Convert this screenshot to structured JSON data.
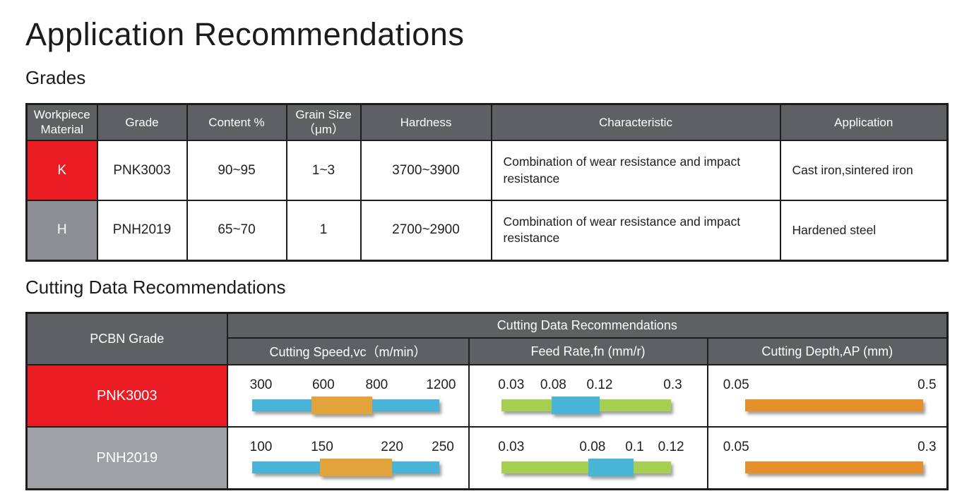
{
  "page": {
    "title": "Application Recommendations"
  },
  "sections": {
    "grades_heading": "Grades",
    "cutting_heading": "Cutting Data Recommendations"
  },
  "colors": {
    "table_header_bg": "#5e6063",
    "brand_red": "#ea1b23",
    "letter_gray": "#8d8f92",
    "row_gray": "#9fa1a5",
    "range_blue": "#47b4d8",
    "range_green": "#a5cf4e",
    "range_orange": "#e3a33b",
    "depth_orange": "#e78f2b",
    "border": "#1d1d1d"
  },
  "grades_table": {
    "headers": [
      "Workpiece\nMaterial",
      "Grade",
      "Content %",
      "Grain Size\n（μm）",
      "Hardness",
      "Characteristic",
      "Application"
    ],
    "rows": [
      {
        "letter": "K",
        "grade": "PNK3003",
        "content": "90~95",
        "grain": "1~3",
        "hardness": "3700~3900",
        "characteristic": "Combination of wear resistance and impact resistance",
        "application": "Cast iron,sintered iron"
      },
      {
        "letter": "H",
        "grade": "PNH2019",
        "content": "65~70",
        "grain": "1",
        "hardness": "2700~2900",
        "characteristic": "Combination of wear resistance and impact resistance",
        "application": "Hardened steel"
      }
    ]
  },
  "cutting_table": {
    "span_header": "Cutting Data Recommendations",
    "col_grade": "PCBN Grade",
    "col_speed": "Cutting Speed,vc（m/min）",
    "col_feed": "Feed Rate,fn (mm/r)",
    "col_depth": "Cutting Depth,AP (mm)",
    "rows": [
      {
        "grade": "PNK3003",
        "bars": [
          {
            "name": "cutting-speed",
            "margin_left": 10,
            "margin_right": 12,
            "labels": [
              {
                "text": "300",
                "pos": 4.9
              },
              {
                "text": "600",
                "pos": 38.2
              },
              {
                "text": "800",
                "pos": 66.7
              },
              {
                "text": "1200",
                "pos": 101
              }
            ],
            "segments": [
              {
                "color": "#47b4d8",
                "pct": 31.8,
                "tall": false
              },
              {
                "color": "#e3a33b",
                "pct": 32.6,
                "tall": true
              },
              {
                "color": "#47b4d8",
                "pct": 35.6,
                "tall": false
              }
            ]
          },
          {
            "name": "feed-rate",
            "margin_left": 13.5,
            "margin_right": 15,
            "labels": [
              {
                "text": "0.03",
                "pos": 5.8
              },
              {
                "text": "0.08",
                "pos": 30.6
              },
              {
                "text": "0.12",
                "pos": 57.9
              },
              {
                "text": "0.3",
                "pos": 101
              }
            ],
            "segments": [
              {
                "color": "#a5cf4e",
                "pct": 29.8,
                "tall": false
              },
              {
                "color": "#47b4d8",
                "pct": 28.1,
                "tall": true
              },
              {
                "color": "#a5cf4e",
                "pct": 42.1,
                "tall": false
              }
            ]
          },
          {
            "name": "cutting-depth",
            "margin_left": 15.5,
            "margin_right": 9.7,
            "labels": [
              {
                "text": "0.05",
                "pos": -5
              },
              {
                "text": "0.5",
                "pos": 102
              }
            ],
            "segments": [
              {
                "color": "#e78f2b",
                "pct": 100,
                "tall": false
              }
            ]
          }
        ]
      },
      {
        "grade": "PNH2019",
        "bars": [
          {
            "name": "cutting-speed",
            "margin_left": 10,
            "margin_right": 12,
            "labels": [
              {
                "text": "100",
                "pos": 4.9
              },
              {
                "text": "150",
                "pos": 37.5
              },
              {
                "text": "220",
                "pos": 74.9
              },
              {
                "text": "250",
                "pos": 102
              }
            ],
            "segments": [
              {
                "color": "#47b4d8",
                "pct": 36.3,
                "tall": false
              },
              {
                "color": "#e3a33b",
                "pct": 38.6,
                "tall": true
              },
              {
                "color": "#47b4d8",
                "pct": 25.1,
                "tall": false
              }
            ]
          },
          {
            "name": "feed-rate",
            "margin_left": 13.5,
            "margin_right": 15,
            "labels": [
              {
                "text": "0.03",
                "pos": 5.8
              },
              {
                "text": "0.08",
                "pos": 53.7
              },
              {
                "text": "0.1",
                "pos": 78.5
              },
              {
                "text": "0.12",
                "pos": 100
              }
            ],
            "segments": [
              {
                "color": "#a5cf4e",
                "pct": 51.2,
                "tall": false
              },
              {
                "color": "#47b4d8",
                "pct": 26.9,
                "tall": true
              },
              {
                "color": "#a5cf4e",
                "pct": 21.9,
                "tall": false
              }
            ]
          },
          {
            "name": "cutting-depth",
            "margin_left": 15.5,
            "margin_right": 9.7,
            "labels": [
              {
                "text": "0.05",
                "pos": -5
              },
              {
                "text": "0.3",
                "pos": 102
              }
            ],
            "segments": [
              {
                "color": "#e78f2b",
                "pct": 100,
                "tall": false
              }
            ]
          }
        ]
      }
    ]
  },
  "chart_data": [
    {
      "type": "bar",
      "title": "PNK3003 cutting data recommendation ranges",
      "series": [
        {
          "name": "Cutting Speed,vc (m/min)",
          "range": [
            300,
            1200
          ],
          "optimal_range": [
            600,
            800
          ],
          "tick_labels": [
            300,
            600,
            800,
            1200
          ]
        },
        {
          "name": "Feed Rate,fn (mm/r)",
          "range": [
            0.03,
            0.3
          ],
          "optimal_range": [
            0.08,
            0.12
          ],
          "tick_labels": [
            0.03,
            0.08,
            0.12,
            0.3
          ]
        },
        {
          "name": "Cutting Depth,AP (mm)",
          "range": [
            0.05,
            0.5
          ],
          "tick_labels": [
            0.05,
            0.5
          ]
        }
      ]
    },
    {
      "type": "bar",
      "title": "PNH2019 cutting data recommendation ranges",
      "series": [
        {
          "name": "Cutting Speed,vc (m/min)",
          "range": [
            100,
            250
          ],
          "optimal_range": [
            150,
            220
          ],
          "tick_labels": [
            100,
            150,
            220,
            250
          ]
        },
        {
          "name": "Feed Rate,fn (mm/r)",
          "range": [
            0.03,
            0.12
          ],
          "optimal_range": [
            0.08,
            0.1
          ],
          "tick_labels": [
            0.03,
            0.08,
            0.1,
            0.12
          ]
        },
        {
          "name": "Cutting Depth,AP (mm)",
          "range": [
            0.05,
            0.3
          ],
          "tick_labels": [
            0.05,
            0.3
          ]
        }
      ]
    }
  ]
}
